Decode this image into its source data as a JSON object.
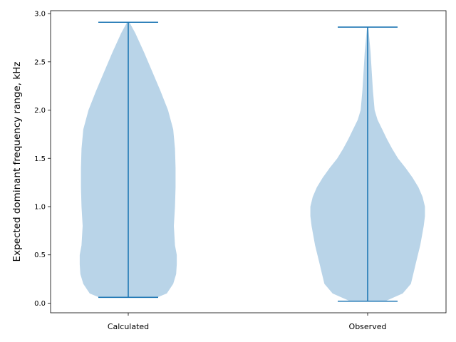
{
  "chart_data": {
    "type": "violin",
    "title": "",
    "xlabel": "",
    "ylabel": "Expected dominant frequency range, kHz",
    "ylim": [
      -0.1,
      3.03
    ],
    "yticks": [
      0.0,
      0.5,
      1.0,
      1.5,
      2.0,
      2.5,
      3.0
    ],
    "ytick_labels": [
      "0.0",
      "0.5",
      "1.0",
      "1.5",
      "2.0",
      "2.5",
      "3.0"
    ],
    "grid": false,
    "colors": {
      "fill": "#b9d4e8",
      "line": "#1f77b4",
      "axis": "#000000"
    },
    "categories": [
      "Calculated",
      "Observed"
    ],
    "violins": [
      {
        "category": "Calculated",
        "min": 0.06,
        "max": 2.91,
        "density": [
          [
            0.06,
            0.5
          ],
          [
            0.1,
            0.66
          ],
          [
            0.2,
            0.77
          ],
          [
            0.3,
            0.82
          ],
          [
            0.4,
            0.83
          ],
          [
            0.5,
            0.83
          ],
          [
            0.6,
            0.8
          ],
          [
            0.7,
            0.79
          ],
          [
            0.8,
            0.78
          ],
          [
            0.9,
            0.79
          ],
          [
            1.0,
            0.8
          ],
          [
            1.2,
            0.81
          ],
          [
            1.4,
            0.81
          ],
          [
            1.6,
            0.8
          ],
          [
            1.8,
            0.77
          ],
          [
            2.0,
            0.68
          ],
          [
            2.2,
            0.55
          ],
          [
            2.4,
            0.41
          ],
          [
            2.6,
            0.27
          ],
          [
            2.8,
            0.12
          ],
          [
            2.91,
            0.02
          ]
        ]
      },
      {
        "category": "Observed",
        "min": 0.02,
        "max": 2.86,
        "density": [
          [
            0.02,
            0.3
          ],
          [
            0.1,
            0.6
          ],
          [
            0.2,
            0.74
          ],
          [
            0.3,
            0.78
          ],
          [
            0.4,
            0.82
          ],
          [
            0.5,
            0.86
          ],
          [
            0.6,
            0.9
          ],
          [
            0.7,
            0.93
          ],
          [
            0.8,
            0.96
          ],
          [
            0.9,
            0.98
          ],
          [
            1.0,
            0.98
          ],
          [
            1.1,
            0.94
          ],
          [
            1.2,
            0.87
          ],
          [
            1.3,
            0.77
          ],
          [
            1.4,
            0.65
          ],
          [
            1.5,
            0.52
          ],
          [
            1.6,
            0.42
          ],
          [
            1.7,
            0.33
          ],
          [
            1.8,
            0.25
          ],
          [
            1.9,
            0.17
          ],
          [
            2.0,
            0.12
          ],
          [
            2.2,
            0.09
          ],
          [
            2.4,
            0.07
          ],
          [
            2.6,
            0.05
          ],
          [
            2.8,
            0.02
          ],
          [
            2.86,
            0.01
          ]
        ]
      }
    ]
  }
}
